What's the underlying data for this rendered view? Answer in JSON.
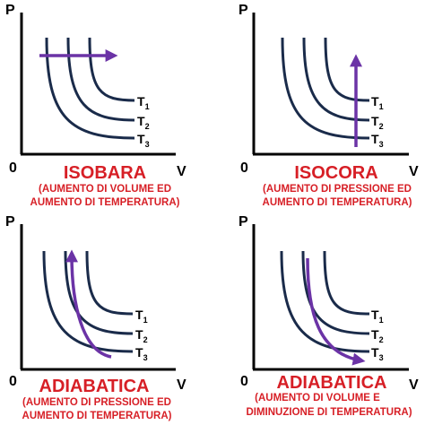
{
  "colors": {
    "axis": "#000000",
    "curve": "#1a2b4a",
    "arrow": "#6b33a6",
    "title": "#d71f26",
    "subtitle": "#d71f26"
  },
  "axes": {
    "p_label": "P",
    "v_label": "V",
    "origin_label": "0"
  },
  "isotherm_labels": {
    "t1_main": "T",
    "t1_sub": "1",
    "t2_main": "T",
    "t2_sub": "2",
    "t3_main": "T",
    "t3_sub": "3"
  },
  "panels": [
    {
      "title": "ISOBARA",
      "subtitle_line1": "(AUMENTO DI VOLUME ED",
      "subtitle_line2": "AUMENTO DI TEMPERATURA)",
      "arrow_direction": "right"
    },
    {
      "title": "ISOCORA",
      "subtitle_line1": "(AUMENTO DI PRESSIONE ED",
      "subtitle_line2": "AUMENTO DI TEMPERATURA)",
      "arrow_direction": "up"
    },
    {
      "title": "ADIABATICA",
      "subtitle_line1": "(AUMENTO DI PRESSIONE ED",
      "subtitle_line2": "AUMENTO DI TEMPERATURA)",
      "arrow_direction": "up-left"
    },
    {
      "title": "ADIABATICA",
      "subtitle_line1": "(AUMENTO DI VOLUME E",
      "subtitle_line2": "DIMINUZIONE DI TEMPERATURA)",
      "arrow_direction": "down-right"
    }
  ]
}
